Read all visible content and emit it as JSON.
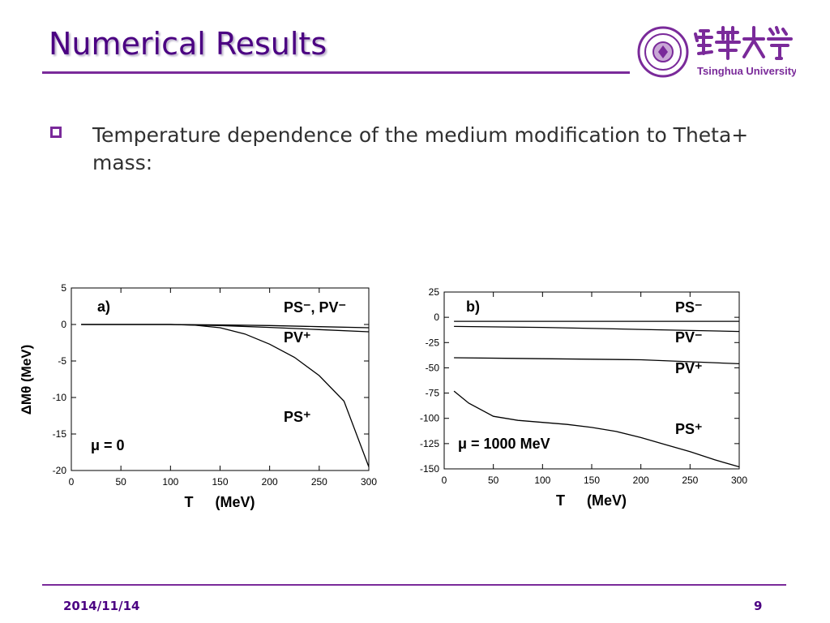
{
  "slide": {
    "title": "Numerical Results",
    "bullet": "Temperature dependence of the medium modification to Theta+ mass:",
    "footer_date": "2014/11/14",
    "page_number": "9",
    "logo_text": "Tsinghua University",
    "accent_color": "#7a2a9a",
    "title_color": "#4b0082"
  },
  "chart_data": [
    {
      "type": "line",
      "panel_label": "a)",
      "xlabel_symbol": "T",
      "xlabel_unit": "(MeV)",
      "ylabel": "ΔMθ (MeV)",
      "annotation": "μ = 0",
      "xlim": [
        0,
        300
      ],
      "ylim": [
        -20,
        5
      ],
      "x_ticks": [
        0,
        50,
        100,
        150,
        200,
        250,
        300
      ],
      "y_ticks": [
        5,
        0,
        -5,
        -10,
        -15,
        -20
      ],
      "series": [
        {
          "name": "PS⁻, PV⁻",
          "points": [
            [
              10,
              0
            ],
            [
              100,
              0
            ],
            [
              150,
              -0.05
            ],
            [
              200,
              -0.15
            ],
            [
              250,
              -0.3
            ],
            [
              300,
              -0.45
            ]
          ]
        },
        {
          "name": "PV⁺",
          "points": [
            [
              10,
              0
            ],
            [
              100,
              0
            ],
            [
              150,
              -0.15
            ],
            [
              200,
              -0.4
            ],
            [
              250,
              -0.7
            ],
            [
              300,
              -1.0
            ]
          ]
        },
        {
          "name": "PS⁺",
          "points": [
            [
              10,
              0
            ],
            [
              100,
              0
            ],
            [
              125,
              -0.1
            ],
            [
              150,
              -0.45
            ],
            [
              175,
              -1.3
            ],
            [
              200,
              -2.7
            ],
            [
              225,
              -4.5
            ],
            [
              250,
              -7.0
            ],
            [
              275,
              -10.5
            ],
            [
              300,
              -19.5
            ]
          ]
        }
      ]
    },
    {
      "type": "line",
      "panel_label": "b)",
      "xlabel_symbol": "T",
      "xlabel_unit": "(MeV)",
      "annotation": "μ = 1000 MeV",
      "xlim": [
        0,
        300
      ],
      "ylim": [
        -150,
        25
      ],
      "x_ticks": [
        0,
        50,
        100,
        150,
        200,
        250,
        300
      ],
      "y_ticks": [
        25,
        0,
        -25,
        -50,
        -75,
        -100,
        -125,
        -150
      ],
      "series": [
        {
          "name": "PS⁻",
          "points": [
            [
              10,
              -4
            ],
            [
              100,
              -4
            ],
            [
              200,
              -4
            ],
            [
              300,
              -4
            ]
          ]
        },
        {
          "name": "PV⁻",
          "points": [
            [
              10,
              -9
            ],
            [
              100,
              -10
            ],
            [
              200,
              -12
            ],
            [
              300,
              -14
            ]
          ]
        },
        {
          "name": "PV⁺",
          "points": [
            [
              10,
              -40
            ],
            [
              100,
              -41
            ],
            [
              200,
              -42
            ],
            [
              300,
              -46
            ]
          ]
        },
        {
          "name": "PS⁺",
          "points": [
            [
              10,
              -73
            ],
            [
              25,
              -85
            ],
            [
              50,
              -98
            ],
            [
              75,
              -102
            ],
            [
              100,
              -104
            ],
            [
              125,
              -106
            ],
            [
              150,
              -109
            ],
            [
              175,
              -113
            ],
            [
              200,
              -119
            ],
            [
              225,
              -126
            ],
            [
              250,
              -133
            ],
            [
              275,
              -141
            ],
            [
              300,
              -148
            ]
          ]
        }
      ]
    }
  ]
}
